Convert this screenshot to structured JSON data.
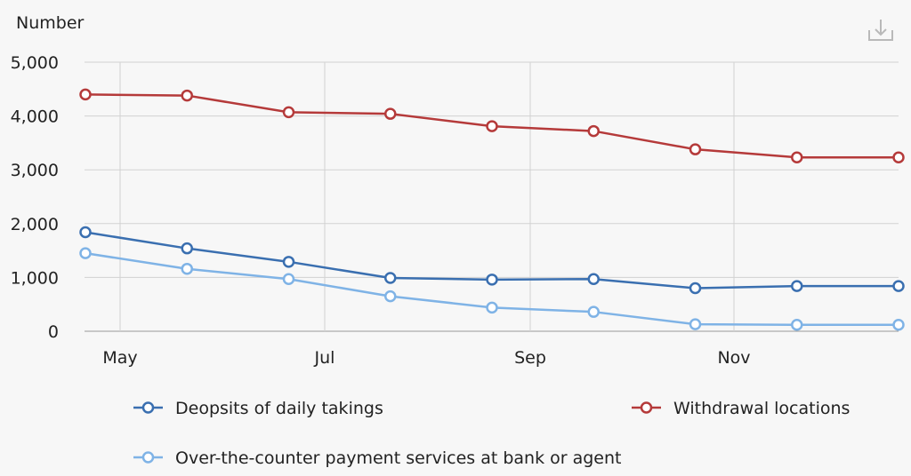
{
  "chart_data": {
    "type": "line",
    "ylabel": "Number",
    "xlabel": "",
    "ylim": [
      0,
      5000
    ],
    "yticks": [
      0,
      1000,
      2000,
      3000,
      4000,
      5000
    ],
    "ytick_labels": [
      "0",
      "1,000",
      "2,000",
      "3,000",
      "4,000",
      "5,000"
    ],
    "x_tick_labels": [
      "May",
      "Jul",
      "Sep",
      "Nov"
    ],
    "grid": {
      "horizontal": true,
      "vertical": true
    },
    "legend_position": "bottom",
    "series": [
      {
        "name": "Deopsits of daily takings",
        "color": "#3a6fb0",
        "values": [
          1840,
          1540,
          1290,
          990,
          960,
          970,
          800,
          840,
          840
        ]
      },
      {
        "name": "Withdrawal locations",
        "color": "#b53a3a",
        "values": [
          4400,
          4380,
          4070,
          4040,
          3810,
          3720,
          3380,
          3230,
          3230
        ]
      },
      {
        "name": "Over-the-counter payment services at bank or agent",
        "color": "#7fb3e6",
        "values": [
          1450,
          1160,
          970,
          650,
          440,
          360,
          130,
          120,
          120
        ]
      }
    ]
  },
  "download_icon": "download-icon"
}
